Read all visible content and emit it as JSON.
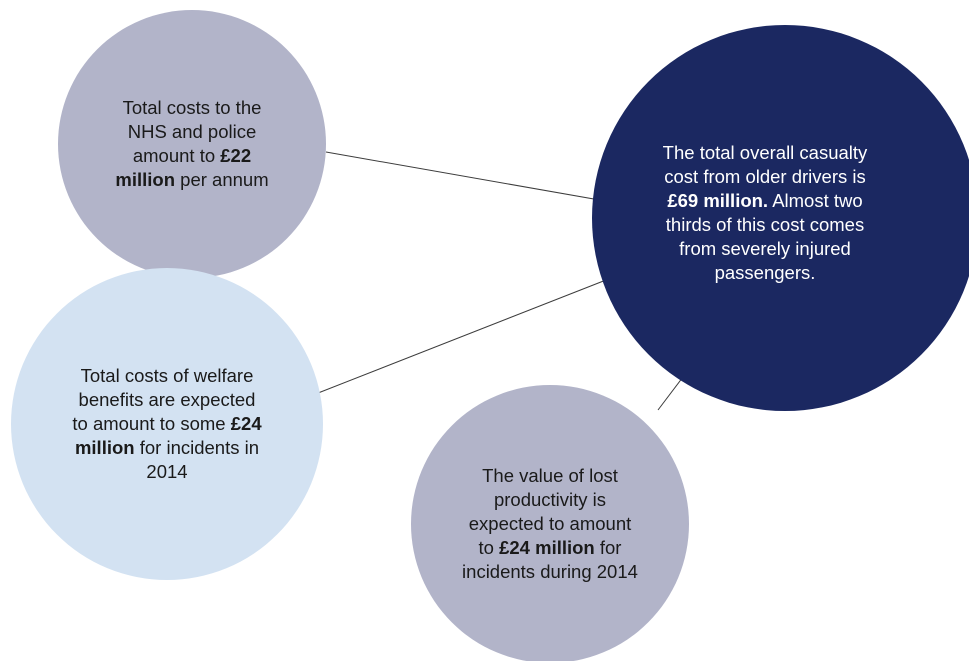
{
  "colors": {
    "grey_bubble": "#b2b4c9",
    "navy_bubble": "#1b2861",
    "light_blue_bubble": "#d3e2f2",
    "connector_line": "#3c3c3c"
  },
  "bubbles": {
    "nhs_police": {
      "pre": "Total costs to the NHS and police amount to ",
      "bold": "£22 million",
      "post": " per annum"
    },
    "total_overall": {
      "pre": "The total overall casualty cost from older drivers is ",
      "bold": "£69 million.",
      "post": " Almost two thirds of this cost comes from severely injured passengers."
    },
    "welfare": {
      "pre": "Total costs of welfare benefits are expected to amount to some ",
      "bold": "£24 million",
      "post": " for incidents in 2014"
    },
    "productivity": {
      "pre": "The value of lost productivity is expected to amount to ",
      "bold": "£24 million",
      "post": " for incidents during 2014"
    }
  }
}
